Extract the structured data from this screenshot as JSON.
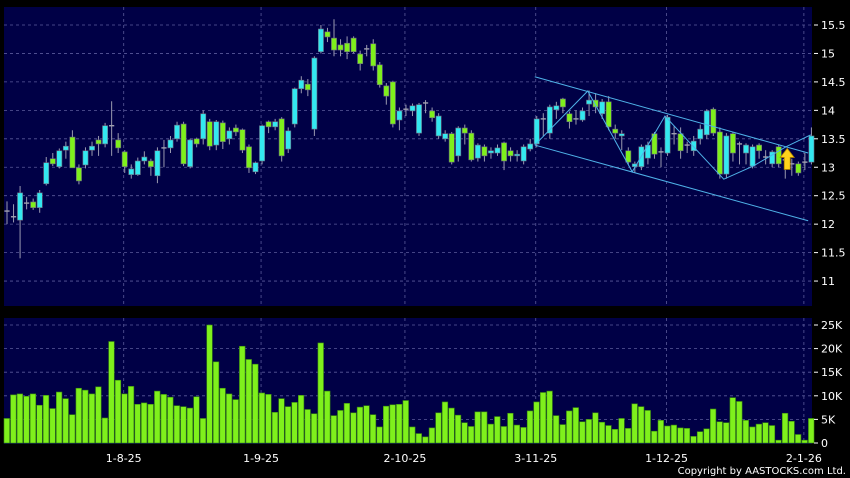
{
  "colors": {
    "background": "#000000",
    "plot_bg": "#000046",
    "grid": "#5a5a9a",
    "up": "#33e8f0",
    "down": "#7ff01c",
    "doji": "#a0a0b0",
    "volume": "#7ff01c",
    "trendline": "#4fb2e8",
    "arrow": "#ffd21c"
  },
  "copyright": "Copyright by AASTOCKS.com Ltd.",
  "chart_data": [
    {
      "type": "candlestick",
      "ylim": [
        10.6,
        15.8
      ],
      "y_ticks": [
        "11",
        "11.5",
        "12",
        "12.5",
        "13",
        "13.5",
        "14",
        "14.5",
        "15",
        "15.5"
      ],
      "x_tick_labels": [
        {
          "label": "1-8-25",
          "index": 18
        },
        {
          "label": "1-9-25",
          "index": 39
        },
        {
          "label": "2-10-25",
          "index": 61
        },
        {
          "label": "3-11-25",
          "index": 81
        },
        {
          "label": "1-12-25",
          "index": 101
        },
        {
          "label": "2-1-26",
          "index": 122
        }
      ],
      "grid": true,
      "ohlc": [
        [
          12.23,
          12.4,
          12.0,
          12.23
        ],
        [
          12.13,
          12.35,
          12.03,
          12.13
        ],
        [
          12.07,
          12.67,
          11.4,
          12.55
        ],
        [
          12.37,
          12.48,
          12.26,
          12.37
        ],
        [
          12.39,
          12.45,
          12.25,
          12.29
        ],
        [
          12.29,
          12.6,
          12.2,
          12.55
        ],
        [
          12.71,
          13.18,
          12.68,
          13.08
        ],
        [
          13.15,
          13.25,
          13.02,
          13.06
        ],
        [
          13.01,
          13.33,
          12.98,
          13.29
        ],
        [
          13.3,
          13.45,
          13.15,
          13.37
        ],
        [
          13.53,
          13.65,
          12.99,
          12.99
        ],
        [
          12.99,
          13.05,
          12.7,
          12.76
        ],
        [
          13.04,
          13.35,
          12.98,
          13.29
        ],
        [
          13.3,
          13.45,
          13.2,
          13.37
        ],
        [
          13.48,
          13.55,
          13.2,
          13.41
        ],
        [
          13.41,
          13.78,
          13.35,
          13.73
        ],
        [
          13.73,
          14.16,
          13.2,
          13.73
        ],
        [
          13.48,
          13.6,
          13.25,
          13.34
        ],
        [
          13.27,
          13.3,
          12.9,
          13.01
        ],
        [
          12.87,
          13.05,
          12.8,
          12.97
        ],
        [
          12.87,
          13.17,
          12.85,
          13.11
        ],
        [
          13.11,
          13.28,
          13.05,
          13.18
        ],
        [
          13.11,
          13.15,
          12.85,
          13.01
        ],
        [
          12.85,
          13.35,
          12.72,
          13.29
        ],
        [
          13.34,
          13.48,
          13.0,
          13.34
        ],
        [
          13.34,
          13.55,
          13.25,
          13.48
        ],
        [
          13.5,
          13.8,
          13.45,
          13.74
        ],
        [
          13.76,
          13.8,
          13.02,
          13.06
        ],
        [
          13.01,
          13.5,
          12.98,
          13.48
        ],
        [
          13.5,
          13.52,
          13.35,
          13.41
        ],
        [
          13.5,
          14.0,
          13.4,
          13.94
        ],
        [
          13.8,
          13.85,
          13.3,
          13.37
        ],
        [
          13.39,
          13.83,
          13.3,
          13.8
        ],
        [
          13.78,
          13.82,
          13.32,
          13.45
        ],
        [
          13.5,
          13.7,
          13.4,
          13.64
        ],
        [
          13.69,
          13.75,
          13.55,
          13.62
        ],
        [
          13.66,
          13.68,
          13.25,
          13.3
        ],
        [
          13.36,
          13.4,
          12.9,
          12.99
        ],
        [
          12.92,
          13.1,
          12.88,
          13.08
        ],
        [
          13.11,
          13.75,
          13.05,
          13.73
        ],
        [
          13.8,
          13.82,
          13.6,
          13.71
        ],
        [
          13.71,
          13.85,
          13.65,
          13.8
        ],
        [
          13.85,
          13.88,
          13.1,
          13.2
        ],
        [
          13.32,
          13.7,
          13.25,
          13.64
        ],
        [
          13.76,
          14.4,
          13.7,
          14.38
        ],
        [
          14.38,
          14.6,
          14.3,
          14.53
        ],
        [
          14.46,
          14.55,
          14.25,
          14.36
        ],
        [
          13.67,
          14.95,
          13.55,
          14.92
        ],
        [
          15.03,
          15.5,
          15.0,
          15.43
        ],
        [
          15.38,
          15.45,
          15.2,
          15.29
        ],
        [
          15.27,
          15.6,
          14.95,
          15.06
        ],
        [
          15.15,
          15.25,
          14.95,
          15.06
        ],
        [
          15.18,
          15.3,
          14.9,
          15.03
        ],
        [
          15.27,
          15.3,
          15.0,
          15.03
        ],
        [
          14.99,
          15.05,
          14.7,
          14.82
        ],
        [
          15.08,
          15.15,
          14.95,
          15.08
        ],
        [
          15.17,
          15.25,
          14.7,
          14.78
        ],
        [
          14.8,
          14.85,
          14.4,
          14.45
        ],
        [
          14.43,
          14.48,
          14.1,
          14.25
        ],
        [
          14.5,
          14.52,
          13.7,
          13.76
        ],
        [
          13.83,
          14.05,
          13.65,
          13.99
        ],
        [
          14.02,
          14.1,
          13.9,
          14.02
        ],
        [
          13.99,
          14.12,
          13.9,
          14.08
        ],
        [
          13.6,
          14.13,
          13.55,
          14.1
        ],
        [
          14.13,
          14.18,
          13.95,
          14.13
        ],
        [
          13.99,
          14.05,
          13.8,
          13.87
        ],
        [
          13.55,
          13.95,
          13.5,
          13.9
        ],
        [
          13.5,
          13.65,
          13.45,
          13.59
        ],
        [
          13.59,
          13.62,
          13.05,
          13.09
        ],
        [
          13.2,
          13.72,
          13.1,
          13.69
        ],
        [
          13.69,
          13.75,
          13.4,
          13.6
        ],
        [
          13.6,
          13.65,
          13.1,
          13.13
        ],
        [
          13.16,
          13.42,
          13.1,
          13.39
        ],
        [
          13.36,
          13.4,
          13.1,
          13.2
        ],
        [
          13.25,
          13.35,
          13.15,
          13.29
        ],
        [
          13.25,
          13.4,
          13.2,
          13.34
        ],
        [
          13.43,
          13.45,
          12.95,
          13.11
        ],
        [
          13.29,
          13.35,
          13.1,
          13.2
        ],
        [
          13.2,
          13.3,
          13.1,
          13.23
        ],
        [
          13.11,
          13.4,
          13.05,
          13.36
        ],
        [
          13.32,
          13.5,
          13.28,
          13.41
        ],
        [
          13.41,
          13.9,
          13.35,
          13.85
        ],
        [
          13.85,
          13.95,
          13.55,
          13.85
        ],
        [
          13.6,
          14.1,
          13.5,
          14.06
        ],
        [
          14.01,
          14.15,
          13.85,
          14.08
        ],
        [
          14.2,
          14.22,
          13.95,
          14.06
        ],
        [
          13.94,
          13.98,
          13.68,
          13.8
        ],
        [
          13.85,
          14.0,
          13.75,
          13.85
        ],
        [
          13.83,
          14.05,
          13.8,
          13.99
        ],
        [
          14.11,
          14.35,
          13.9,
          14.18
        ],
        [
          14.18,
          14.3,
          13.95,
          14.06
        ],
        [
          13.94,
          14.2,
          13.85,
          14.15
        ],
        [
          14.15,
          14.25,
          13.65,
          13.71
        ],
        [
          13.67,
          13.75,
          13.5,
          13.6
        ],
        [
          13.55,
          13.65,
          13.3,
          13.59
        ],
        [
          13.29,
          13.35,
          13.05,
          13.09
        ],
        [
          13.01,
          13.1,
          12.9,
          13.06
        ],
        [
          13.01,
          13.4,
          12.95,
          13.36
        ],
        [
          13.16,
          13.45,
          13.05,
          13.39
        ],
        [
          13.59,
          13.62,
          13.15,
          13.23
        ],
        [
          13.27,
          13.35,
          13.0,
          13.27
        ],
        [
          13.25,
          13.92,
          13.2,
          13.88
        ],
        [
          13.59,
          13.72,
          13.4,
          13.59
        ],
        [
          13.59,
          13.7,
          13.15,
          13.29
        ],
        [
          13.39,
          13.45,
          13.25,
          13.39
        ],
        [
          13.29,
          13.55,
          13.2,
          13.46
        ],
        [
          13.5,
          13.75,
          13.4,
          13.67
        ],
        [
          13.57,
          14.02,
          13.5,
          13.99
        ],
        [
          14.02,
          14.05,
          13.55,
          13.6
        ],
        [
          13.62,
          13.7,
          12.8,
          12.88
        ],
        [
          12.88,
          13.6,
          12.8,
          13.55
        ],
        [
          13.59,
          13.62,
          13.1,
          13.25
        ],
        [
          13.41,
          13.45,
          13.05,
          13.41
        ],
        [
          13.25,
          13.42,
          13.05,
          13.39
        ],
        [
          13.02,
          13.4,
          12.98,
          13.36
        ],
        [
          13.39,
          13.42,
          13.15,
          13.29
        ],
        [
          13.18,
          13.3,
          13.05,
          13.18
        ],
        [
          13.06,
          13.3,
          13.0,
          13.27
        ],
        [
          13.36,
          13.4,
          13.0,
          13.06
        ],
        [
          13.13,
          13.25,
          12.8,
          13.13
        ],
        [
          13.06,
          13.15,
          12.85,
          13.06
        ],
        [
          13.06,
          13.1,
          12.85,
          12.9
        ],
        [
          13.09,
          13.25,
          12.95,
          13.09
        ],
        [
          13.09,
          13.7,
          13.05,
          13.55
        ]
      ],
      "trendlines": [
        {
          "name": "channel-upper",
          "points": [
            [
              80.7,
              14.59
            ],
            [
              122.5,
              13.25
            ]
          ]
        },
        {
          "name": "channel-lower",
          "points": [
            [
              80.7,
              13.39
            ],
            [
              122.5,
              12.06
            ]
          ]
        },
        {
          "name": "zigzag",
          "points": [
            [
              80.7,
              13.39
            ],
            [
              88.8,
              14.34
            ],
            [
              95.6,
              12.92
            ],
            [
              100.6,
              13.9
            ],
            [
              109.6,
              12.79
            ],
            [
              114.1,
              13.02
            ],
            [
              119.1,
              13.36
            ],
            [
              122.9,
              13.57
            ]
          ]
        }
      ],
      "annotations": [
        {
          "type": "up-arrow",
          "index": 119.3,
          "price": 13.12
        }
      ]
    },
    {
      "type": "bar",
      "ylim": [
        0,
        26
      ],
      "y_ticks": [
        "0",
        "5K",
        "10K",
        "15K",
        "20K",
        "25K"
      ],
      "grid": true,
      "values": [
        5.2,
        10.2,
        10.4,
        9.9,
        10.4,
        8,
        10.1,
        7.3,
        10.8,
        9.4,
        6,
        11.6,
        11.2,
        10.4,
        11.9,
        5.3,
        21.5,
        13.3,
        10.4,
        12,
        8.2,
        8.5,
        8.2,
        11,
        10.3,
        9.7,
        7.9,
        7.7,
        7.4,
        9.8,
        5.2,
        25,
        17.2,
        11.6,
        10.4,
        9.2,
        20.5,
        17.7,
        16.7,
        10.6,
        10.3,
        6.5,
        9.4,
        7.7,
        8.6,
        10.1,
        7.1,
        6.2,
        21.2,
        11,
        5.8,
        6.9,
        8.4,
        6.4,
        7.6,
        7.9,
        6,
        3.4,
        7.8,
        8.1,
        8.2,
        9,
        3.4,
        2,
        1.3,
        3.2,
        6.4,
        8.7,
        7.4,
        5.9,
        4.3,
        3.5,
        6.6,
        6.6,
        4,
        5.6,
        3.5,
        6.3,
        3.8,
        3.3,
        6.8,
        8.7,
        10.7,
        11,
        5.8,
        3.9,
        6.8,
        7.5,
        4.5,
        5,
        6.4,
        4.4,
        3.7,
        2.9,
        5.2,
        3.1,
        8.3,
        7.7,
        6.9,
        2.5,
        4.8,
        3.6,
        3.8,
        3.2,
        3.1,
        1.4,
        2.4,
        3,
        7.2,
        4.5,
        4.3,
        9.6,
        8.8,
        4.8,
        3.4,
        4,
        4.3,
        3.7,
        0.6,
        6.3,
        4.6,
        1.8,
        0.6,
        5.2
      ]
    }
  ]
}
